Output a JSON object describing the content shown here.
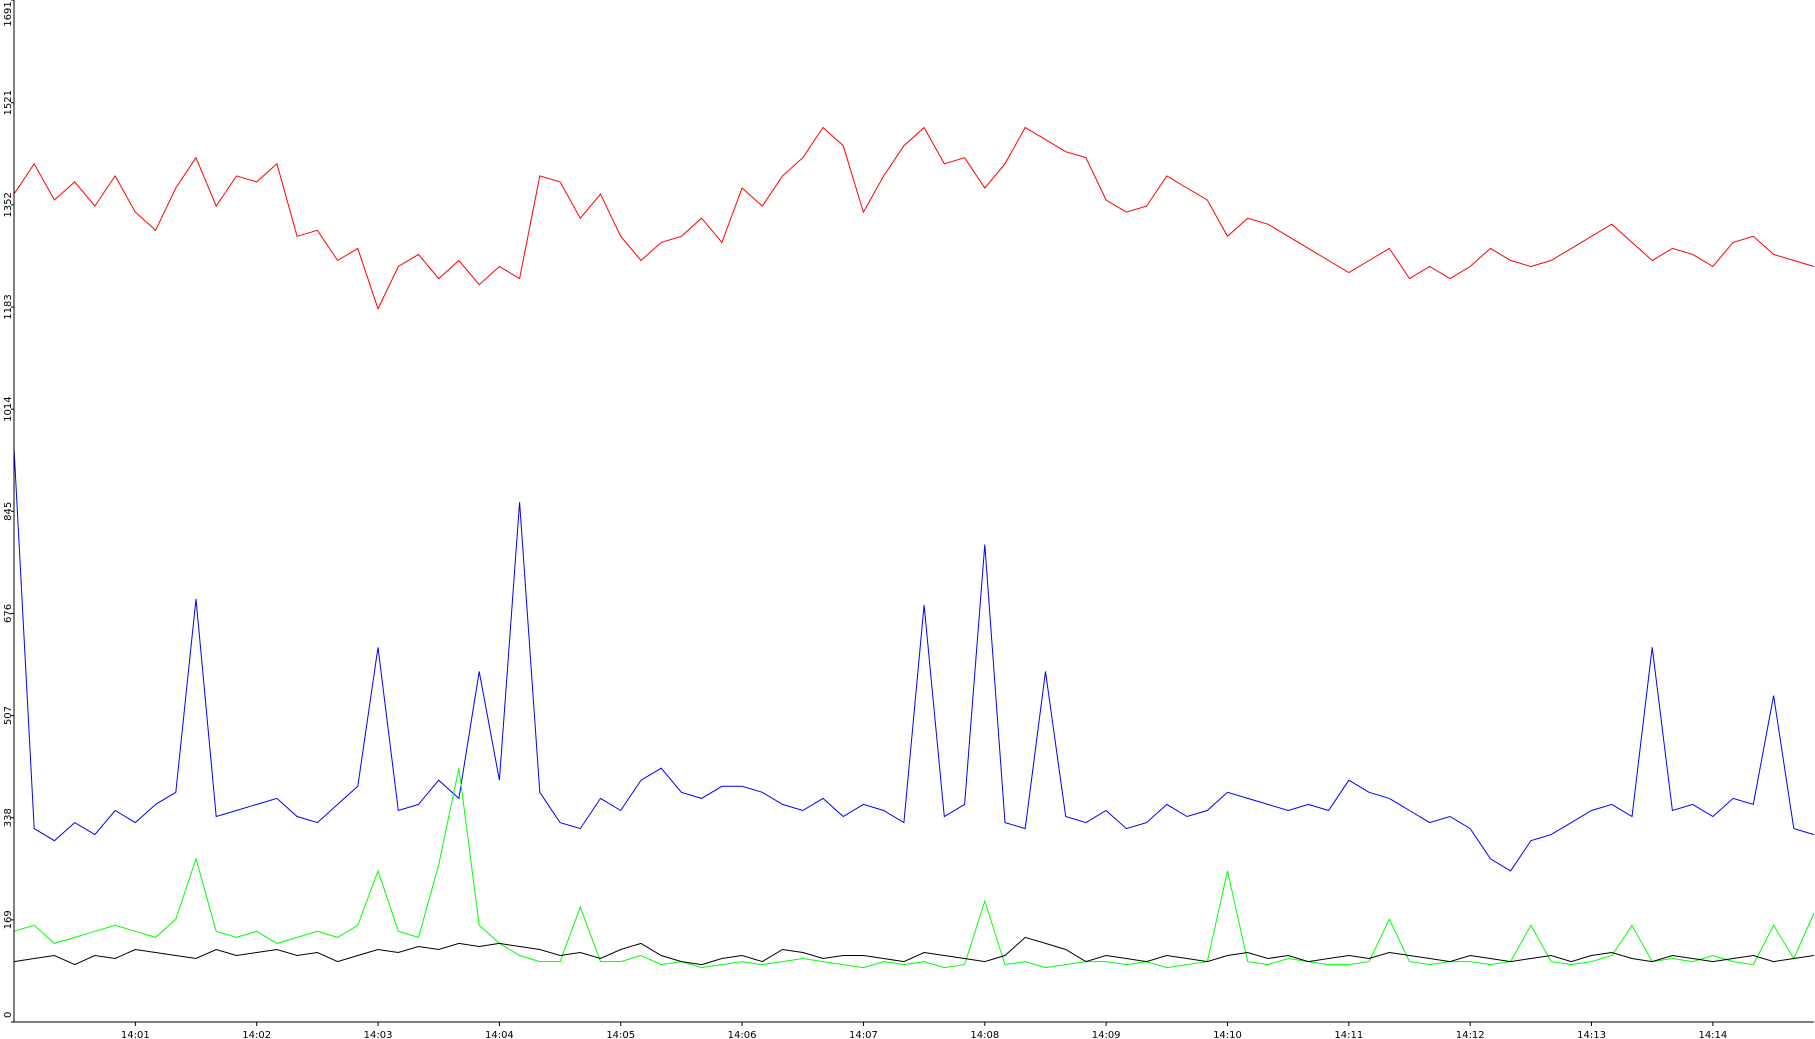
{
  "chart_data": {
    "type": "line",
    "categories": [
      null,
      null,
      null,
      null,
      null,
      null,
      "14:01",
      null,
      null,
      null,
      null,
      null,
      "14:02",
      null,
      null,
      null,
      null,
      null,
      "14:03",
      null,
      null,
      null,
      null,
      null,
      "14:04",
      null,
      null,
      null,
      null,
      null,
      "14:05",
      null,
      null,
      null,
      null,
      null,
      "14:06",
      null,
      null,
      null,
      null,
      null,
      "14:07",
      null,
      null,
      null,
      null,
      null,
      "14:08",
      null,
      null,
      null,
      null,
      null,
      "14:09",
      null,
      null,
      null,
      null,
      null,
      "14:10",
      null,
      null,
      null,
      null,
      null,
      "14:11",
      null,
      null,
      null,
      null,
      null,
      "14:12",
      null,
      null,
      null,
      null,
      null,
      "14:13",
      null,
      null,
      null,
      null,
      null,
      "14:14",
      null,
      null,
      null,
      null,
      null
    ],
    "series": [
      {
        "color": "#ff0000",
        "values": [
          1370,
          1420,
          1360,
          1390,
          1350,
          1400,
          1340,
          1310,
          1380,
          1430,
          1350,
          1400,
          1390,
          1420,
          1300,
          1310,
          1260,
          1280,
          1180,
          1250,
          1270,
          1230,
          1260,
          1220,
          1250,
          1230,
          1400,
          1390,
          1330,
          1370,
          1300,
          1260,
          1290,
          1300,
          1330,
          1290,
          1380,
          1350,
          1400,
          1430,
          1480,
          1450,
          1340,
          1400,
          1450,
          1480,
          1420,
          1430,
          1380,
          1420,
          1480,
          1460,
          1440,
          1430,
          1360,
          1340,
          1350,
          1400,
          1380,
          1360,
          1300,
          1330,
          1320,
          1300,
          1280,
          1260,
          1240,
          1260,
          1280,
          1230,
          1250,
          1230,
          1250,
          1280,
          1260,
          1250,
          1260,
          1280,
          1300,
          1320,
          1290,
          1260,
          1280,
          1270,
          1250,
          1290,
          1300,
          1270,
          1260,
          1250
        ]
      },
      {
        "color": "#0000ff",
        "values": [
          950,
          320,
          300,
          330,
          310,
          350,
          330,
          360,
          380,
          700,
          340,
          350,
          360,
          370,
          340,
          330,
          360,
          390,
          620,
          350,
          360,
          400,
          370,
          580,
          400,
          860,
          380,
          330,
          320,
          370,
          350,
          400,
          420,
          380,
          370,
          390,
          390,
          380,
          360,
          350,
          370,
          340,
          360,
          350,
          330,
          690,
          340,
          360,
          790,
          330,
          320,
          580,
          340,
          330,
          350,
          320,
          330,
          360,
          340,
          350,
          380,
          370,
          360,
          350,
          360,
          350,
          400,
          380,
          370,
          350,
          330,
          340,
          320,
          270,
          250,
          300,
          310,
          330,
          350,
          360,
          340,
          620,
          350,
          360,
          340,
          370,
          360,
          540,
          320,
          310
        ]
      },
      {
        "color": "#00ff00",
        "values": [
          150,
          160,
          130,
          140,
          150,
          160,
          150,
          140,
          170,
          270,
          150,
          140,
          150,
          130,
          140,
          150,
          140,
          160,
          250,
          150,
          140,
          260,
          420,
          160,
          130,
          110,
          100,
          100,
          190,
          100,
          100,
          110,
          95,
          100,
          90,
          95,
          100,
          95,
          100,
          105,
          100,
          95,
          90,
          100,
          95,
          100,
          90,
          95,
          200,
          95,
          100,
          90,
          95,
          100,
          100,
          95,
          100,
          90,
          95,
          100,
          250,
          100,
          95,
          105,
          100,
          95,
          95,
          100,
          170,
          100,
          95,
          100,
          100,
          95,
          100,
          160,
          100,
          95,
          100,
          110,
          160,
          100,
          105,
          100,
          110,
          100,
          95,
          160,
          105,
          180
        ]
      },
      {
        "color": "#000000",
        "values": [
          100,
          105,
          110,
          95,
          110,
          105,
          120,
          115,
          110,
          105,
          120,
          110,
          115,
          120,
          110,
          115,
          100,
          110,
          120,
          115,
          125,
          120,
          130,
          125,
          130,
          125,
          120,
          110,
          115,
          105,
          120,
          130,
          110,
          100,
          95,
          105,
          110,
          100,
          120,
          115,
          105,
          110,
          110,
          105,
          100,
          115,
          110,
          105,
          100,
          110,
          140,
          130,
          120,
          100,
          110,
          105,
          100,
          110,
          105,
          100,
          110,
          115,
          105,
          110,
          100,
          105,
          110,
          105,
          115,
          110,
          105,
          100,
          110,
          105,
          100,
          105,
          110,
          100,
          110,
          115,
          105,
          100,
          110,
          105,
          100,
          105,
          110,
          100,
          105,
          110
        ]
      }
    ],
    "ylim": [
      0,
      1691
    ],
    "yticks": [
      0,
      169,
      338,
      507,
      676,
      845,
      1014,
      1183,
      1352,
      1521,
      1691
    ]
  }
}
